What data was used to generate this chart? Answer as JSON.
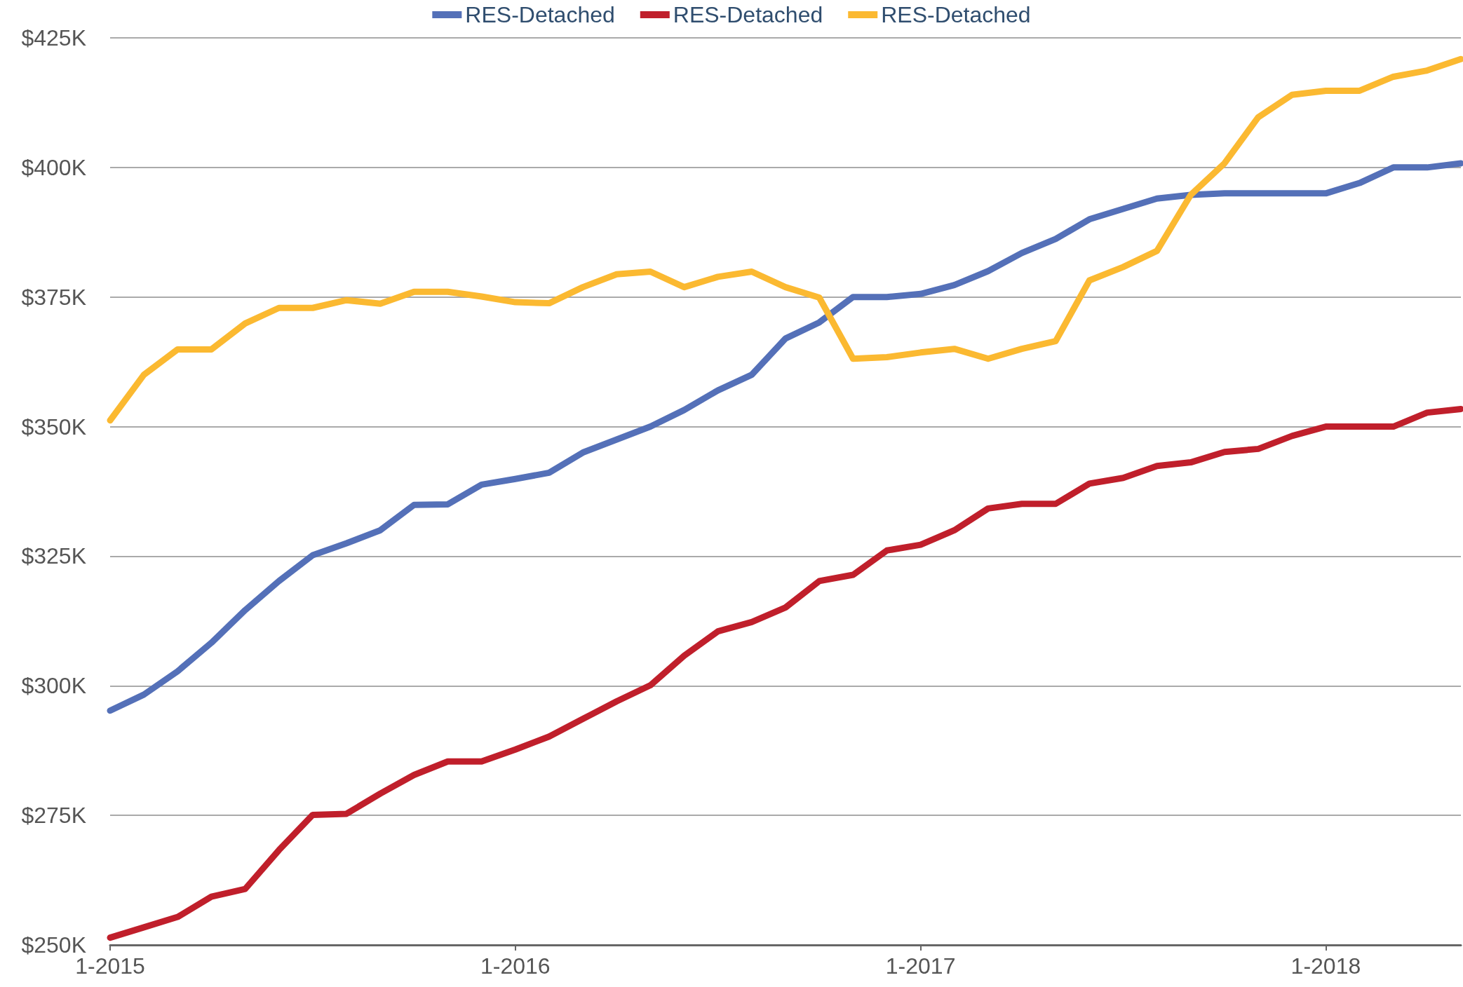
{
  "chart_data": {
    "type": "line",
    "categories": [
      "1-2015",
      null,
      null,
      null,
      null,
      null,
      null,
      null,
      null,
      null,
      null,
      null,
      "1-2016",
      null,
      null,
      null,
      null,
      null,
      null,
      null,
      null,
      null,
      null,
      null,
      "1-2017",
      null,
      null,
      null,
      null,
      null,
      null,
      null,
      null,
      null,
      null,
      null,
      "1-2018",
      null,
      null,
      null,
      null
    ],
    "series": [
      {
        "name": "RES-Detached",
        "color": "#5470b8",
        "values": [
          295.2,
          298.3,
          302.8,
          308.3,
          314.6,
          320.2,
          325.2,
          327.5,
          330,
          334.9,
          335,
          338.8,
          339.9,
          341.1,
          345,
          347.5,
          350,
          353.2,
          357,
          360,
          367,
          370.1,
          375,
          375,
          375.6,
          377.3,
          380,
          383.5,
          386.2,
          390,
          392,
          394,
          394.7,
          395,
          395,
          395,
          395,
          397,
          400,
          400,
          400.8
        ]
      },
      {
        "name": "RES-Detached",
        "color": "#c01f2b",
        "values": [
          251.4,
          253.4,
          255.4,
          259.3,
          260.8,
          268.3,
          275.1,
          275.3,
          279.2,
          282.8,
          285.4,
          285.4,
          287.7,
          290.2,
          293.6,
          297,
          300.1,
          305.8,
          310.5,
          312.3,
          315.1,
          320.2,
          321.4,
          326.1,
          327.2,
          330,
          334.2,
          335.1,
          335.1,
          339,
          340.1,
          342.4,
          343.1,
          345.1,
          345.7,
          348.2,
          350,
          350,
          350,
          352.7,
          353.4
        ]
      },
      {
        "name": "RES-Detached",
        "color": "#fbb931",
        "values": [
          351.2,
          360,
          364.9,
          364.9,
          369.9,
          372.9,
          372.9,
          374.4,
          373.7,
          376,
          376,
          375.1,
          374,
          373.8,
          376.9,
          379.4,
          379.9,
          376.9,
          378.9,
          379.9,
          376.9,
          374.9,
          363.1,
          363.4,
          364.3,
          365,
          363.1,
          365,
          366.5,
          378.2,
          380.8,
          383.9,
          394.7,
          400.8,
          409.7,
          414,
          414.8,
          414.8,
          417.5,
          418.7,
          420.9
        ]
      }
    ],
    "ylim": [
      250,
      425
    ],
    "yticks": [
      {
        "value": 250,
        "label": "$250K"
      },
      {
        "value": 275,
        "label": "$275K"
      },
      {
        "value": 300,
        "label": "$300K"
      },
      {
        "value": 325,
        "label": "$325K"
      },
      {
        "value": 350,
        "label": "$350K"
      },
      {
        "value": 375,
        "label": "$375K"
      },
      {
        "value": 400,
        "label": "$400K"
      },
      {
        "value": 425,
        "label": "$425K"
      }
    ],
    "grid": "y",
    "legend": "top",
    "marker": "none",
    "line_style": "solid"
  }
}
